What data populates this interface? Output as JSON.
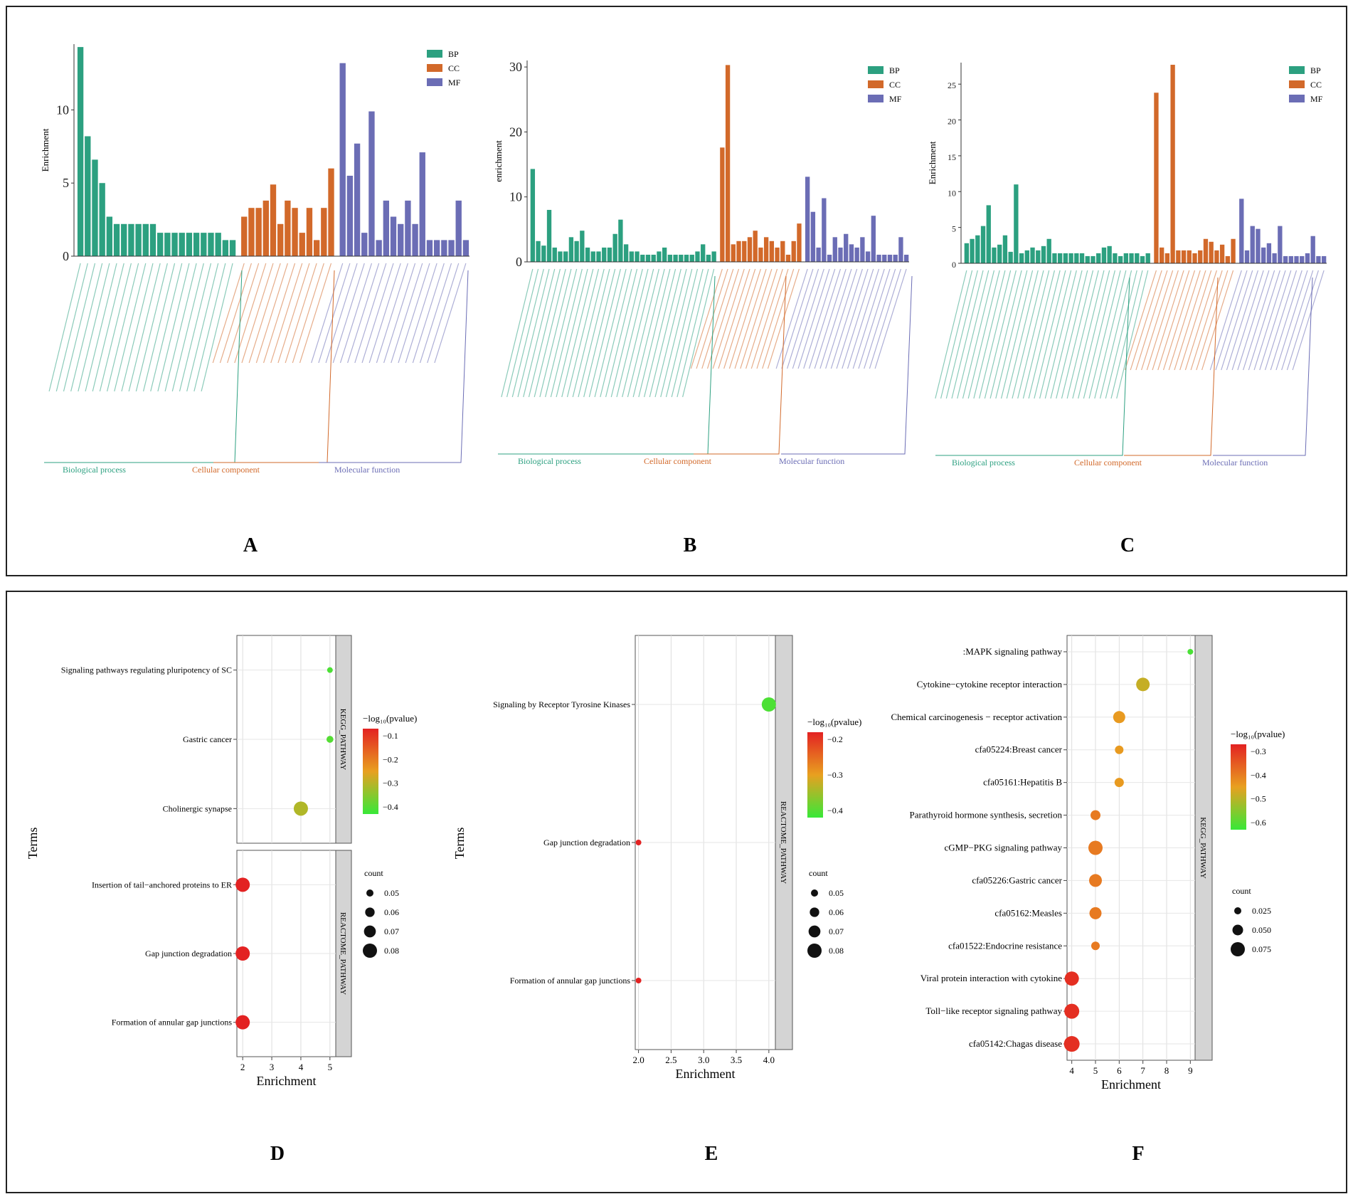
{
  "colors": {
    "BP": "#2ca080",
    "CC": "#d2692a",
    "MF": "#6b6db5",
    "low": "#e32222",
    "mid": "#e8a020",
    "high": "#38e838"
  },
  "chart_data": [
    {
      "id": "A",
      "type": "bar",
      "label": "A",
      "ylabel": "Enrichment",
      "ylim": [
        0,
        14.5
      ],
      "yticks": [
        0,
        5,
        10
      ],
      "legend": [
        "BP",
        "CC",
        "MF"
      ],
      "groups": [
        "Biological process",
        "Cellular component",
        "Molecular function"
      ],
      "series": [
        {
          "name": "BP",
          "values": [
            14.3,
            8.2,
            6.6,
            5.0,
            2.7,
            2.2,
            2.2,
            2.2,
            2.2,
            2.2,
            2.2,
            1.6,
            1.6,
            1.6,
            1.6,
            1.6,
            1.6,
            1.6,
            1.6,
            1.6,
            1.1,
            1.1
          ]
        },
        {
          "name": "CC",
          "values": [
            2.7,
            3.3,
            3.3,
            3.8,
            4.9,
            2.2,
            3.8,
            3.3,
            1.6,
            3.3,
            1.1,
            3.3,
            6.0
          ]
        },
        {
          "name": "MF",
          "values": [
            13.2,
            5.5,
            7.7,
            1.6,
            9.9,
            1.1,
            3.8,
            2.7,
            2.2,
            3.8,
            2.2,
            7.1,
            1.1,
            1.1,
            1.1,
            1.1,
            3.8,
            1.1
          ]
        }
      ]
    },
    {
      "id": "B",
      "type": "bar",
      "label": "B",
      "ylabel": "enrichment",
      "ylim": [
        0,
        31
      ],
      "yticks": [
        0,
        10,
        20,
        30
      ],
      "legend": [
        "BP",
        "CC",
        "MF"
      ],
      "groups": [
        "Biological process",
        "Cellular component",
        "Molecular function"
      ],
      "series": [
        {
          "name": "BP",
          "values": [
            14.3,
            3.2,
            2.5,
            8.0,
            2.2,
            1.6,
            1.6,
            3.8,
            3.2,
            4.8,
            2.2,
            1.6,
            1.6,
            2.2,
            2.2,
            4.3,
            6.5,
            2.7,
            1.6,
            1.6,
            1.1,
            1.1,
            1.1,
            1.6,
            2.2,
            1.1,
            1.1,
            1.1,
            1.1,
            1.1,
            1.6,
            2.7,
            1.1,
            1.6
          ]
        },
        {
          "name": "CC",
          "values": [
            17.6,
            30.3,
            2.7,
            3.2,
            3.2,
            3.8,
            4.8,
            2.2,
            3.8,
            3.2,
            2.2,
            3.2,
            1.1,
            3.2,
            5.9
          ]
        },
        {
          "name": "MF",
          "values": [
            13.1,
            7.7,
            2.2,
            9.8,
            1.1,
            3.8,
            2.2,
            4.3,
            2.7,
            2.2,
            3.8,
            1.6,
            7.1,
            1.1,
            1.1,
            1.1,
            1.1,
            3.8,
            1.1
          ]
        }
      ]
    },
    {
      "id": "C",
      "type": "bar",
      "label": "C",
      "ylabel": "Enrichment",
      "ylim": [
        0,
        28
      ],
      "yticks": [
        0,
        5,
        10,
        15,
        20,
        25
      ],
      "legend": [
        "BP",
        "CC",
        "MF"
      ],
      "groups": [
        "Biological process",
        "Cellular component",
        "Molecular function"
      ],
      "series": [
        {
          "name": "BP",
          "values": [
            2.8,
            3.4,
            3.9,
            5.2,
            8.1,
            2.2,
            2.6,
            3.9,
            1.6,
            11.0,
            1.4,
            1.8,
            2.2,
            1.8,
            2.4,
            3.4,
            1.4,
            1.4,
            1.4,
            1.4,
            1.4,
            1.4,
            1.0,
            1.0,
            1.4,
            2.2,
            2.4,
            1.4,
            1.0,
            1.4,
            1.4,
            1.4,
            1.0,
            1.4
          ]
        },
        {
          "name": "CC",
          "values": [
            23.8,
            2.2,
            1.4,
            27.7,
            1.8,
            1.8,
            1.8,
            1.4,
            1.8,
            3.4,
            3.0,
            1.8,
            2.6,
            1.0,
            3.4
          ]
        },
        {
          "name": "MF",
          "values": [
            9.0,
            1.8,
            5.2,
            4.8,
            2.2,
            2.8,
            1.4,
            5.2,
            1.0,
            1.0,
            1.0,
            1.0,
            1.4,
            3.8,
            1.0,
            1.0
          ]
        }
      ]
    },
    {
      "id": "D",
      "type": "scatter",
      "label": "D",
      "xlabel": "Enrichment",
      "ylabel": "Terms",
      "xlim": [
        1.8,
        5.2
      ],
      "xticks": [
        2,
        3,
        4,
        5
      ],
      "color_title": "−log₁₀(pvalue)",
      "color_ticks": [
        "−0.1",
        "−0.2",
        "−0.3",
        "−0.4"
      ],
      "color_range": [
        -0.05,
        -0.43
      ],
      "size_title": "count",
      "size_ticks": [
        "0.05",
        "0.06",
        "0.07",
        "0.08"
      ],
      "facets": [
        {
          "name": "KEGG_PATHWAY",
          "points": [
            {
              "term": "Signaling pathways regulating pluripotency of SC",
              "x": 5,
              "color": -0.41,
              "size": 0.045
            },
            {
              "term": "Gastric cancer",
              "x": 5,
              "color": -0.4,
              "size": 0.05
            },
            {
              "term": "Cholinergic synapse",
              "x": 4,
              "color": -0.3,
              "size": 0.08
            }
          ]
        },
        {
          "name": "REACTOME_PATHWAY",
          "points": [
            {
              "term": "Insertion of tail−anchored proteins to ER",
              "x": 2,
              "color": -0.05,
              "size": 0.08
            },
            {
              "term": "Gap junction degradation",
              "x": 2,
              "color": -0.05,
              "size": 0.08
            },
            {
              "term": "Formation of annular gap junctions",
              "x": 2,
              "color": -0.05,
              "size": 0.08
            }
          ]
        }
      ]
    },
    {
      "id": "E",
      "type": "scatter",
      "label": "E",
      "xlabel": "Enrichment",
      "ylabel": "Terms",
      "xlim": [
        1.95,
        4.1
      ],
      "xticks": [
        2.0,
        2.5,
        3.0,
        3.5,
        4.0
      ],
      "xtick_labels": [
        "2.0",
        "2.5",
        "3.0",
        "3.5",
        "4.0"
      ],
      "color_title": "−log₁₀(pvalue)",
      "color_ticks": [
        "−0.2",
        "−0.3",
        "−0.4"
      ],
      "color_range": [
        -0.15,
        -0.5
      ],
      "size_title": "count",
      "size_ticks": [
        "0.05",
        "0.06",
        "0.07",
        "0.08"
      ],
      "facets": [
        {
          "name": "REACTOME_PATHWAY",
          "points": [
            {
              "term": "Signaling by Receptor Tyrosine Kinases",
              "x": 4.0,
              "color": -0.48,
              "size": 0.08
            },
            {
              "term": "Gap junction degradation",
              "x": 2.0,
              "color": -0.15,
              "size": 0.04
            },
            {
              "term": "Formation of annular gap junctions",
              "x": 2.0,
              "color": -0.15,
              "size": 0.04
            }
          ]
        }
      ]
    },
    {
      "id": "F",
      "type": "scatter",
      "label": "F",
      "xlabel": "Enrichment",
      "ylabel": "",
      "xlim": [
        3.8,
        9.2
      ],
      "xticks": [
        4,
        5,
        6,
        7,
        8,
        9
      ],
      "color_title": "−log₁₀(pvalue)",
      "color_ticks": [
        "−0.3",
        "−0.4",
        "−0.5",
        "−0.6"
      ],
      "color_range": [
        -0.28,
        -0.68
      ],
      "size_title": "count",
      "size_ticks": [
        "0.025",
        "0.050",
        "0.075"
      ],
      "facets": [
        {
          "name": "KEGG_PATHWAY",
          "points": [
            {
              "term": ":MAPK signaling pathway",
              "x": 9,
              "color": -0.66,
              "size": 0.015
            },
            {
              "term": "Cytokine−cytokine receptor interaction",
              "x": 7,
              "color": -0.52,
              "size": 0.07
            },
            {
              "term": "Chemical carcinogenesis − receptor activation",
              "x": 6,
              "color": -0.47,
              "size": 0.06
            },
            {
              "term": "cfa05224:Breast cancer",
              "x": 6,
              "color": -0.47,
              "size": 0.035
            },
            {
              "term": "cfa05161:Hepatitis B",
              "x": 6,
              "color": -0.47,
              "size": 0.04
            },
            {
              "term": "Parathyroid hormone synthesis, secretion",
              "x": 5,
              "color": -0.42,
              "size": 0.045
            },
            {
              "term": "cGMP−PKG signaling pathway",
              "x": 5,
              "color": -0.42,
              "size": 0.075
            },
            {
              "term": "cfa05226:Gastric cancer",
              "x": 5,
              "color": -0.42,
              "size": 0.065
            },
            {
              "term": "cfa05162:Measles",
              "x": 5,
              "color": -0.42,
              "size": 0.06
            },
            {
              "term": "cfa01522:Endocrine resistance",
              "x": 5,
              "color": -0.42,
              "size": 0.035
            },
            {
              "term": "Viral protein interaction with cytokine",
              "x": 4,
              "color": -0.3,
              "size": 0.075
            },
            {
              "term": "Toll−like receptor signaling pathway",
              "x": 4,
              "color": -0.3,
              "size": 0.08
            },
            {
              "term": "cfa05142:Chagas disease",
              "x": 4,
              "color": -0.3,
              "size": 0.085
            }
          ]
        }
      ]
    }
  ]
}
